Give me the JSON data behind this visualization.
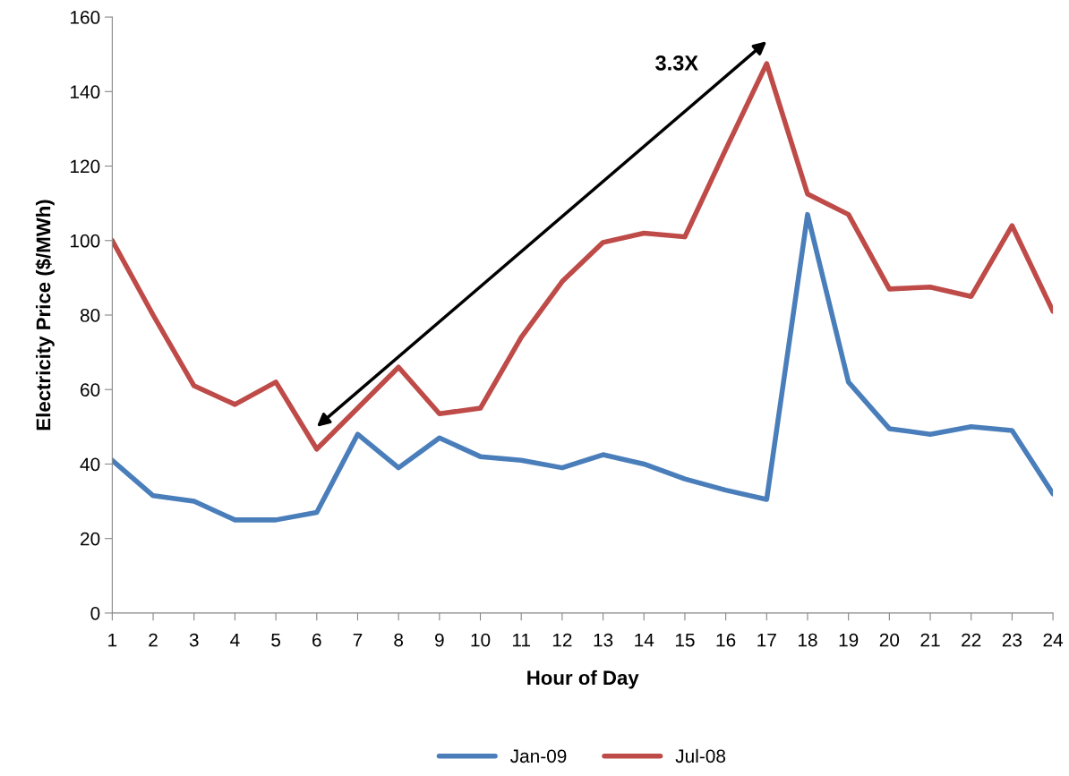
{
  "chart_data": {
    "type": "line",
    "xlabel": "Hour of Day",
    "ylabel": "Electricity Price ($/MWh)",
    "x": [
      1,
      2,
      3,
      4,
      5,
      6,
      7,
      8,
      9,
      10,
      11,
      12,
      13,
      14,
      15,
      16,
      17,
      18,
      19,
      20,
      21,
      22,
      23,
      24
    ],
    "xlim": [
      1,
      24
    ],
    "xticks": [
      1,
      2,
      3,
      4,
      5,
      6,
      7,
      8,
      9,
      10,
      11,
      12,
      13,
      14,
      15,
      16,
      17,
      18,
      19,
      20,
      21,
      22,
      23,
      24
    ],
    "ylim": [
      0,
      160
    ],
    "yticks": [
      0,
      20,
      40,
      60,
      80,
      100,
      120,
      140,
      160
    ],
    "grid": false,
    "legend": "bottom",
    "marker": "none",
    "line_style": "solid",
    "series": [
      {
        "name": "Jan-09",
        "color": "#4a7ebb",
        "values": [
          41,
          31.5,
          30,
          25,
          25,
          27,
          48,
          39,
          47,
          42,
          41,
          39,
          42.5,
          40,
          36,
          33,
          30.5,
          107,
          62,
          49.5,
          48,
          50,
          49,
          32
        ]
      },
      {
        "name": "Jul-08",
        "color": "#be4b48",
        "values": [
          100,
          80,
          61,
          56,
          62,
          44,
          55,
          66,
          53.5,
          55,
          74,
          89,
          99.5,
          102,
          101,
          124.5,
          147.5,
          112.5,
          107,
          87,
          87.5,
          85,
          104,
          81
        ]
      }
    ],
    "annotations": [
      "3.3X"
    ]
  }
}
